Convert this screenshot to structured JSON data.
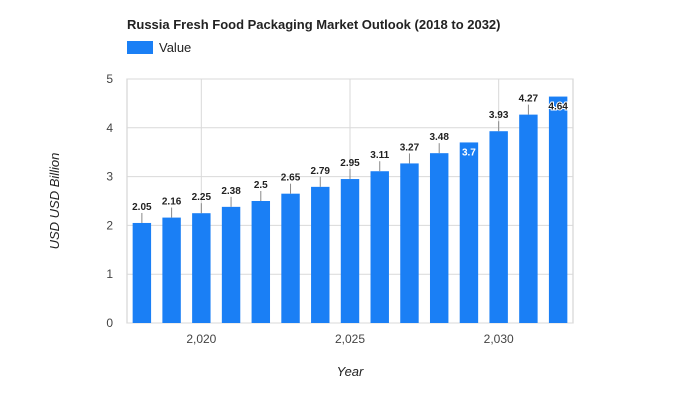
{
  "chart_data": {
    "type": "bar",
    "title": "Russia Fresh Food Packaging Market Outlook (2018 to 2032)",
    "xlabel": "Year",
    "ylabel": "USD USD Billion",
    "legend": {
      "position": "top-left",
      "entries": [
        "Value"
      ]
    },
    "grid": true,
    "color": "#1a7ff5",
    "x": [
      2018,
      2019,
      2020,
      2021,
      2022,
      2023,
      2024,
      2025,
      2026,
      2027,
      2028,
      2029,
      2030,
      2031,
      2032
    ],
    "series": [
      {
        "name": "Value",
        "values": [
          2.05,
          2.16,
          2.25,
          2.38,
          2.5,
          2.65,
          2.79,
          2.95,
          3.11,
          3.27,
          3.48,
          3.7,
          3.93,
          4.27,
          4.64
        ]
      }
    ],
    "data_labels": [
      "2.05",
      "2.16",
      "2.25",
      "2.38",
      "2.5",
      "2.65",
      "2.79",
      "2.95",
      "3.11",
      "3.27",
      "3.48",
      "3.7",
      "3.93",
      "4.27",
      "4.64"
    ],
    "ylim": [
      0,
      5
    ],
    "yticks": [
      "0",
      "1",
      "2",
      "3",
      "4",
      "5"
    ],
    "xticks": [
      {
        "value": 2020,
        "label": "2,020"
      },
      {
        "value": 2025,
        "label": "2,025"
      },
      {
        "value": 2030,
        "label": "2,030"
      }
    ]
  }
}
